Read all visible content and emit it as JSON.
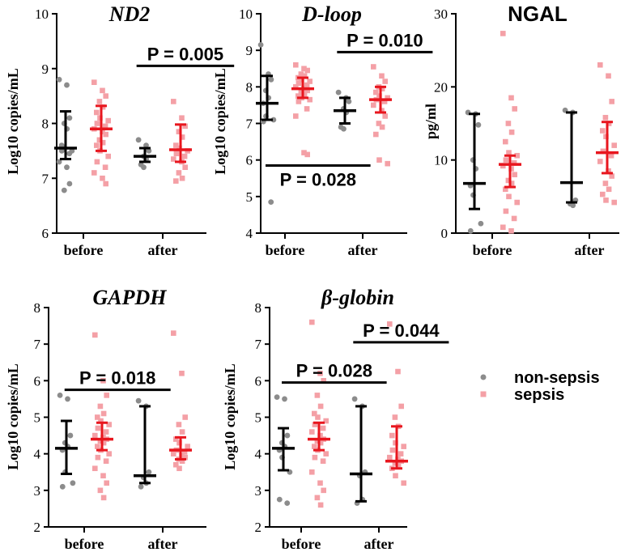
{
  "colors": {
    "nonsepsis": "#8c8c8c",
    "sepsis": "#f4a0a6",
    "sepsis_bar": "#e8161e",
    "nonsepsis_bar": "#000000"
  },
  "legend": {
    "items": [
      {
        "label": "non-sepsis"
      },
      {
        "label": "sepsis"
      }
    ]
  },
  "chart_data": [
    {
      "id": "nd2",
      "type": "scatter",
      "title": "ND2",
      "title_style": "italic",
      "ylabel": "Log10 copies/mL",
      "ylim": [
        6,
        10
      ],
      "yticks": [
        6,
        7,
        8,
        9,
        10
      ],
      "categories": [
        "before",
        "after"
      ],
      "groups": [
        {
          "cat": 0,
          "series": "non-sepsis",
          "median": 7.55,
          "low": 7.35,
          "high": 8.22,
          "points": [
            8.8,
            8.7,
            8.1,
            8.0,
            7.9,
            7.6,
            7.55,
            7.5,
            7.5,
            7.45,
            7.3,
            7.2,
            6.9,
            6.78
          ]
        },
        {
          "cat": 0,
          "series": "sepsis",
          "median": 7.9,
          "low": 7.5,
          "high": 8.32,
          "points": [
            8.75,
            8.6,
            8.5,
            8.4,
            8.3,
            8.2,
            8.1,
            8.05,
            8.0,
            7.95,
            7.9,
            7.85,
            7.8,
            7.7,
            7.65,
            7.6,
            7.5,
            7.4,
            7.3,
            7.2,
            7.1,
            7.0,
            6.9
          ]
        },
        {
          "cat": 1,
          "series": "non-sepsis",
          "median": 7.4,
          "low": 7.3,
          "high": 7.55,
          "points": [
            7.7,
            7.6,
            7.5,
            7.4,
            7.35,
            7.25,
            7.2
          ]
        },
        {
          "cat": 1,
          "series": "sepsis",
          "median": 7.52,
          "low": 7.3,
          "high": 7.98,
          "points": [
            8.4,
            8.1,
            7.95,
            7.85,
            7.75,
            7.6,
            7.55,
            7.5,
            7.45,
            7.4,
            7.35,
            7.3,
            7.2,
            7.1,
            7.0,
            6.95
          ]
        }
      ],
      "annotations": [
        {
          "text": "P = 0.005",
          "y": 9.05,
          "from": 0.67,
          "to": 1.9
        }
      ]
    },
    {
      "id": "dloop",
      "type": "scatter",
      "title": "D-loop",
      "title_style": "italic",
      "ylabel": "Log10 copies/mL",
      "ylim": [
        4,
        10
      ],
      "yticks": [
        4,
        5,
        6,
        7,
        8,
        9,
        10
      ],
      "categories": [
        "before",
        "after"
      ],
      "groups": [
        {
          "cat": 0,
          "series": "non-sepsis",
          "median": 7.55,
          "low": 7.1,
          "high": 8.3,
          "points": [
            9.15,
            8.35,
            8.2,
            7.9,
            7.7,
            7.55,
            7.2,
            7.1,
            7.05,
            4.85
          ]
        },
        {
          "cat": 0,
          "series": "sepsis",
          "median": 7.95,
          "low": 7.7,
          "high": 8.25,
          "points": [
            8.6,
            8.5,
            8.45,
            8.35,
            8.3,
            8.25,
            8.2,
            8.15,
            8.1,
            8.05,
            8.0,
            7.95,
            7.9,
            7.85,
            7.8,
            7.75,
            7.7,
            7.65,
            7.6,
            7.4,
            7.2,
            6.2,
            6.15
          ]
        },
        {
          "cat": 1,
          "series": "non-sepsis",
          "median": 7.35,
          "low": 7.0,
          "high": 7.7,
          "points": [
            7.85,
            7.7,
            7.6,
            7.4,
            7.3,
            6.9,
            6.85
          ]
        },
        {
          "cat": 1,
          "series": "sepsis",
          "median": 7.65,
          "low": 7.3,
          "high": 8.0,
          "points": [
            8.55,
            8.3,
            8.15,
            8.0,
            7.95,
            7.85,
            7.75,
            7.7,
            7.65,
            7.6,
            7.5,
            7.35,
            7.2,
            7.0,
            6.9,
            6.7,
            6.0,
            5.9
          ]
        }
      ],
      "annotations": [
        {
          "text": "P = 0.010",
          "y": 8.95,
          "from": 0.67,
          "to": 1.9
        },
        {
          "text": "P = 0.028",
          "y": 5.85,
          "from": -0.25,
          "to": 1.1,
          "text_below": true
        }
      ]
    },
    {
      "id": "ngal",
      "type": "scatter",
      "title": "NGAL",
      "title_style": "plain",
      "ylabel": "pg/ml",
      "ylim": [
        0,
        30
      ],
      "yticks": [
        0,
        10,
        20,
        30
      ],
      "categories": [
        "before",
        "after"
      ],
      "groups": [
        {
          "cat": 0,
          "series": "non-sepsis",
          "median": 6.8,
          "low": 3.3,
          "high": 16.3,
          "points": [
            16.5,
            16.3,
            14.8,
            10.0,
            8.8,
            6.5,
            5.2,
            1.3,
            0.3
          ]
        },
        {
          "cat": 0,
          "series": "sepsis",
          "median": 9.4,
          "low": 6.3,
          "high": 10.6,
          "points": [
            27.3,
            18.5,
            17.0,
            15.0,
            13.8,
            12.5,
            11.0,
            10.6,
            10.0,
            9.6,
            9.2,
            8.8,
            8.0,
            7.2,
            6.8,
            6.0,
            5.0,
            4.2,
            3.0,
            2.0,
            0.8,
            0.3
          ]
        },
        {
          "cat": 1,
          "series": "non-sepsis",
          "median": 6.9,
          "low": 4.2,
          "high": 16.5,
          "points": [
            16.8,
            16.5,
            4.5,
            4.0,
            3.8
          ]
        },
        {
          "cat": 1,
          "series": "sepsis",
          "median": 11.0,
          "low": 8.2,
          "high": 15.2,
          "points": [
            23.0,
            21.5,
            18.0,
            15.8,
            15.0,
            14.0,
            13.2,
            12.0,
            11.2,
            10.6,
            9.8,
            8.5,
            7.8,
            6.8,
            6.0,
            5.3,
            4.5,
            4.2
          ]
        }
      ],
      "annotations": []
    },
    {
      "id": "gapdh",
      "type": "scatter",
      "title": "GAPDH",
      "title_style": "italic",
      "ylabel": "Log10 copies/mL",
      "ylim": [
        2,
        8
      ],
      "yticks": [
        2,
        3,
        4,
        5,
        6,
        7,
        8
      ],
      "categories": [
        "before",
        "after"
      ],
      "groups": [
        {
          "cat": 0,
          "series": "non-sepsis",
          "median": 4.15,
          "low": 3.45,
          "high": 4.9,
          "points": [
            5.6,
            5.5,
            4.5,
            4.3,
            4.2,
            4.1,
            3.5,
            3.2,
            3.1
          ]
        },
        {
          "cat": 0,
          "series": "sepsis",
          "median": 4.4,
          "low": 4.1,
          "high": 4.85,
          "points": [
            7.25,
            6.0,
            5.6,
            5.3,
            5.1,
            5.0,
            4.9,
            4.8,
            4.7,
            4.6,
            4.5,
            4.45,
            4.4,
            4.35,
            4.3,
            4.2,
            4.1,
            4.0,
            3.9,
            3.8,
            3.6,
            3.4,
            3.2,
            3.0,
            2.8
          ]
        },
        {
          "cat": 1,
          "series": "non-sepsis",
          "median": 3.4,
          "low": 3.2,
          "high": 5.3,
          "points": [
            5.45,
            5.3,
            3.5,
            3.35,
            3.2,
            3.1
          ]
        },
        {
          "cat": 1,
          "series": "sepsis",
          "median": 4.1,
          "low": 3.85,
          "high": 4.45,
          "points": [
            7.3,
            6.2,
            5.0,
            4.8,
            4.6,
            4.4,
            4.3,
            4.2,
            4.1,
            4.05,
            4.0,
            3.95,
            3.9,
            3.85,
            3.8,
            3.7,
            3.6
          ]
        }
      ],
      "annotations": [
        {
          "text": "P = 0.018",
          "y": 5.75,
          "from": -0.25,
          "to": 1.1
        }
      ]
    },
    {
      "id": "bglobin",
      "type": "scatter",
      "title": "β-globin",
      "title_style": "italic",
      "ylabel": "Log10 copies/mL",
      "ylim": [
        2,
        8
      ],
      "yticks": [
        2,
        3,
        4,
        5,
        6,
        7,
        8
      ],
      "categories": [
        "before",
        "after"
      ],
      "groups": [
        {
          "cat": 0,
          "series": "non-sepsis",
          "median": 4.15,
          "low": 3.55,
          "high": 4.7,
          "points": [
            5.55,
            5.5,
            4.5,
            4.3,
            4.2,
            4.1,
            3.9,
            3.5,
            2.75,
            2.65
          ]
        },
        {
          "cat": 0,
          "series": "sepsis",
          "median": 4.4,
          "low": 4.1,
          "high": 4.85,
          "points": [
            7.6,
            6.2,
            6.0,
            5.6,
            5.3,
            5.1,
            5.0,
            4.9,
            4.8,
            4.7,
            4.6,
            4.5,
            4.4,
            4.35,
            4.3,
            4.2,
            4.1,
            4.0,
            3.9,
            3.8,
            3.5,
            3.2,
            3.0,
            2.8,
            2.6
          ]
        },
        {
          "cat": 1,
          "series": "non-sepsis",
          "median": 3.45,
          "low": 2.7,
          "high": 5.3,
          "points": [
            5.5,
            5.3,
            3.5,
            3.4,
            2.75,
            2.65
          ]
        },
        {
          "cat": 1,
          "series": "sepsis",
          "median": 3.8,
          "low": 3.6,
          "high": 4.75,
          "points": [
            7.55,
            6.25,
            5.3,
            5.0,
            4.75,
            4.5,
            4.3,
            4.2,
            4.1,
            4.0,
            3.9,
            3.85,
            3.8,
            3.75,
            3.7,
            3.6,
            3.4,
            3.2
          ]
        }
      ],
      "annotations": [
        {
          "text": "P = 0.044",
          "y": 7.05,
          "from": 0.67,
          "to": 1.9
        },
        {
          "text": "P = 0.028",
          "y": 5.95,
          "from": -0.25,
          "to": 1.1
        }
      ]
    }
  ]
}
